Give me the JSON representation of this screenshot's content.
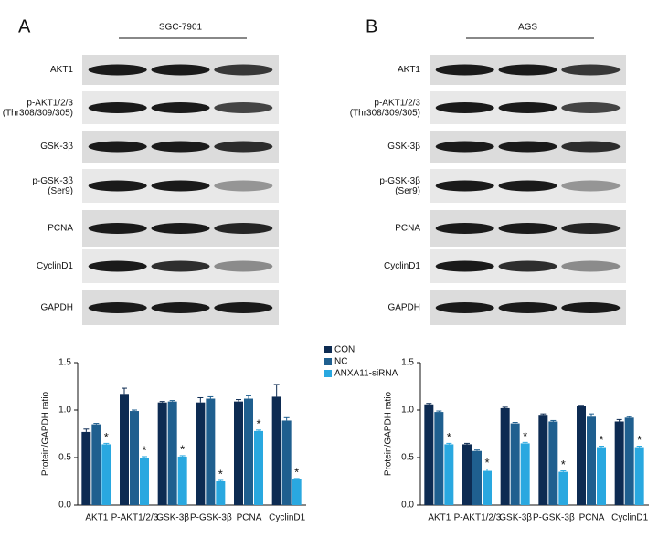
{
  "panels": [
    {
      "label": "A",
      "cell_line": "SGC-7901",
      "blot_rows": [
        "AKT1",
        "p-AKT1/2/3\n(Thr308/309/305)",
        "GSK-3β",
        "p-GSK-3β\n(Ser9)",
        "PCNA",
        "CyclinD1",
        "GAPDH"
      ]
    },
    {
      "label": "B",
      "cell_line": "AGS",
      "blot_rows": [
        "AKT1",
        "p-AKT1/2/3\n(Thr308/309/305)",
        "GSK-3β",
        "p-GSK-3β\n(Ser9)",
        "PCNA",
        "CyclinD1",
        "GAPDH"
      ]
    }
  ],
  "chart_data": [
    {
      "type": "bar",
      "y_label": "Protein/GAPDH ratio",
      "categories": [
        "AKT1",
        "P-AKT1/2/3",
        "GSK-3β",
        "P-GSK-3β",
        "PCNA",
        "CyclinD1"
      ],
      "series": [
        {
          "name": "CON",
          "color": "#0d2b52",
          "values": [
            0.77,
            1.17,
            1.08,
            1.08,
            1.09,
            1.14
          ],
          "errors": [
            0.03,
            0.06,
            0.01,
            0.05,
            0.02,
            0.13
          ]
        },
        {
          "name": "NC",
          "color": "#1f5f8f",
          "values": [
            0.85,
            0.99,
            1.09,
            1.12,
            1.12,
            0.89
          ],
          "errors": [
            0.01,
            0.01,
            0.01,
            0.02,
            0.03,
            0.03
          ]
        },
        {
          "name": "ANXA11-siRNA",
          "color": "#29a8e0",
          "values": [
            0.64,
            0.5,
            0.51,
            0.25,
            0.78,
            0.27
          ],
          "errors": [
            0.01,
            0.01,
            0.01,
            0.01,
            0.01,
            0.01
          ],
          "annotations": [
            "*",
            "*",
            "*",
            "*",
            "*",
            "*"
          ]
        }
      ],
      "ylim": [
        0,
        1.5
      ],
      "yticks": [
        {
          "value": 0,
          "label": "0.0"
        },
        0.5,
        {
          "value": 1,
          "label": "1.0"
        },
        1.5
      ],
      "legend": true
    },
    {
      "type": "bar",
      "y_label": "Protein/GAPDH ratio",
      "categories": [
        "AKT1",
        "P-AKT1/2/3",
        "GSK-3β",
        "P-GSK-3β",
        "PCNA",
        "CyclinD1"
      ],
      "series": [
        {
          "color": "#0d2b52",
          "values": [
            1.06,
            0.64,
            1.02,
            0.95,
            1.04,
            0.88
          ],
          "errors": [
            0.01,
            0.01,
            0.01,
            0.01,
            0.01,
            0.02
          ]
        },
        {
          "color": "#1f5f8f",
          "values": [
            0.98,
            0.57,
            0.86,
            0.88,
            0.93,
            0.92
          ],
          "errors": [
            0.01,
            0.01,
            0.01,
            0.01,
            0.03,
            0.01
          ]
        },
        {
          "color": "#29a8e0",
          "values": [
            0.64,
            0.36,
            0.65,
            0.35,
            0.61,
            0.61
          ],
          "errors": [
            0.01,
            0.02,
            0.01,
            0.01,
            0.01,
            0.01
          ],
          "annotations": [
            "*",
            "*",
            "*",
            "*",
            "*",
            "*"
          ]
        }
      ],
      "ylim": [
        0,
        1.5
      ],
      "yticks": [
        {
          "value": 0,
          "label": "0.0"
        },
        0.5,
        {
          "value": 1,
          "label": "1.0"
        },
        1.5
      ],
      "legend": false
    }
  ]
}
